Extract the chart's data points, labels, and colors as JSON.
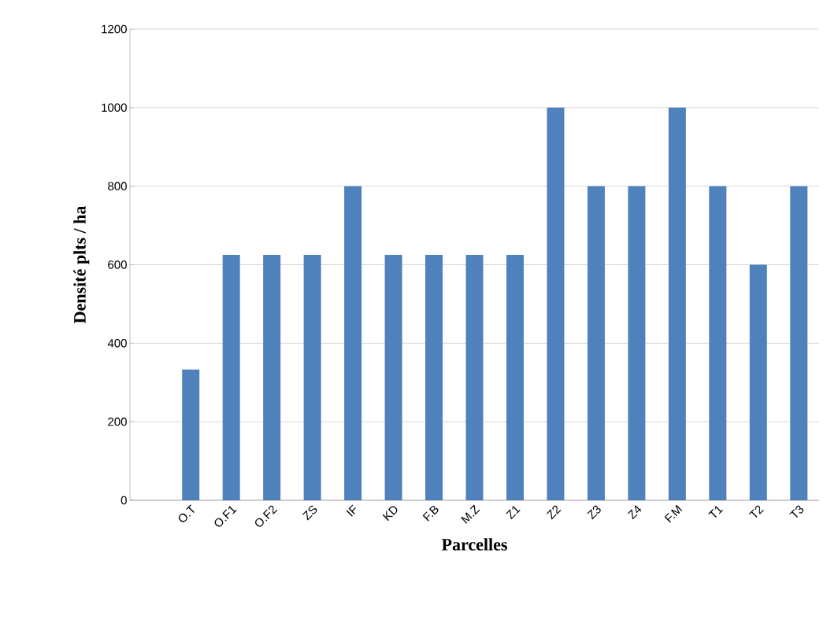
{
  "chart_data": {
    "type": "bar",
    "xlabel": "Parcelles",
    "ylabel": "Densité plts / ha",
    "categories": [
      null,
      "O.T",
      "O.F1",
      "O.F2",
      "ZS",
      "IF",
      "KD",
      "F.B",
      "M.Z",
      "Z1",
      "Z2",
      "Z3",
      "Z4",
      "F.M",
      "T1",
      "T2",
      "T3"
    ],
    "values": [
      null,
      333,
      625,
      625,
      625,
      800,
      625,
      625,
      625,
      625,
      1000,
      800,
      800,
      1000,
      800,
      600,
      800
    ],
    "color": "#4f81bd",
    "ylim": [
      0,
      1200
    ],
    "yticks": [
      0,
      200,
      400,
      600,
      800,
      1000,
      1200
    ],
    "grid": "y"
  }
}
